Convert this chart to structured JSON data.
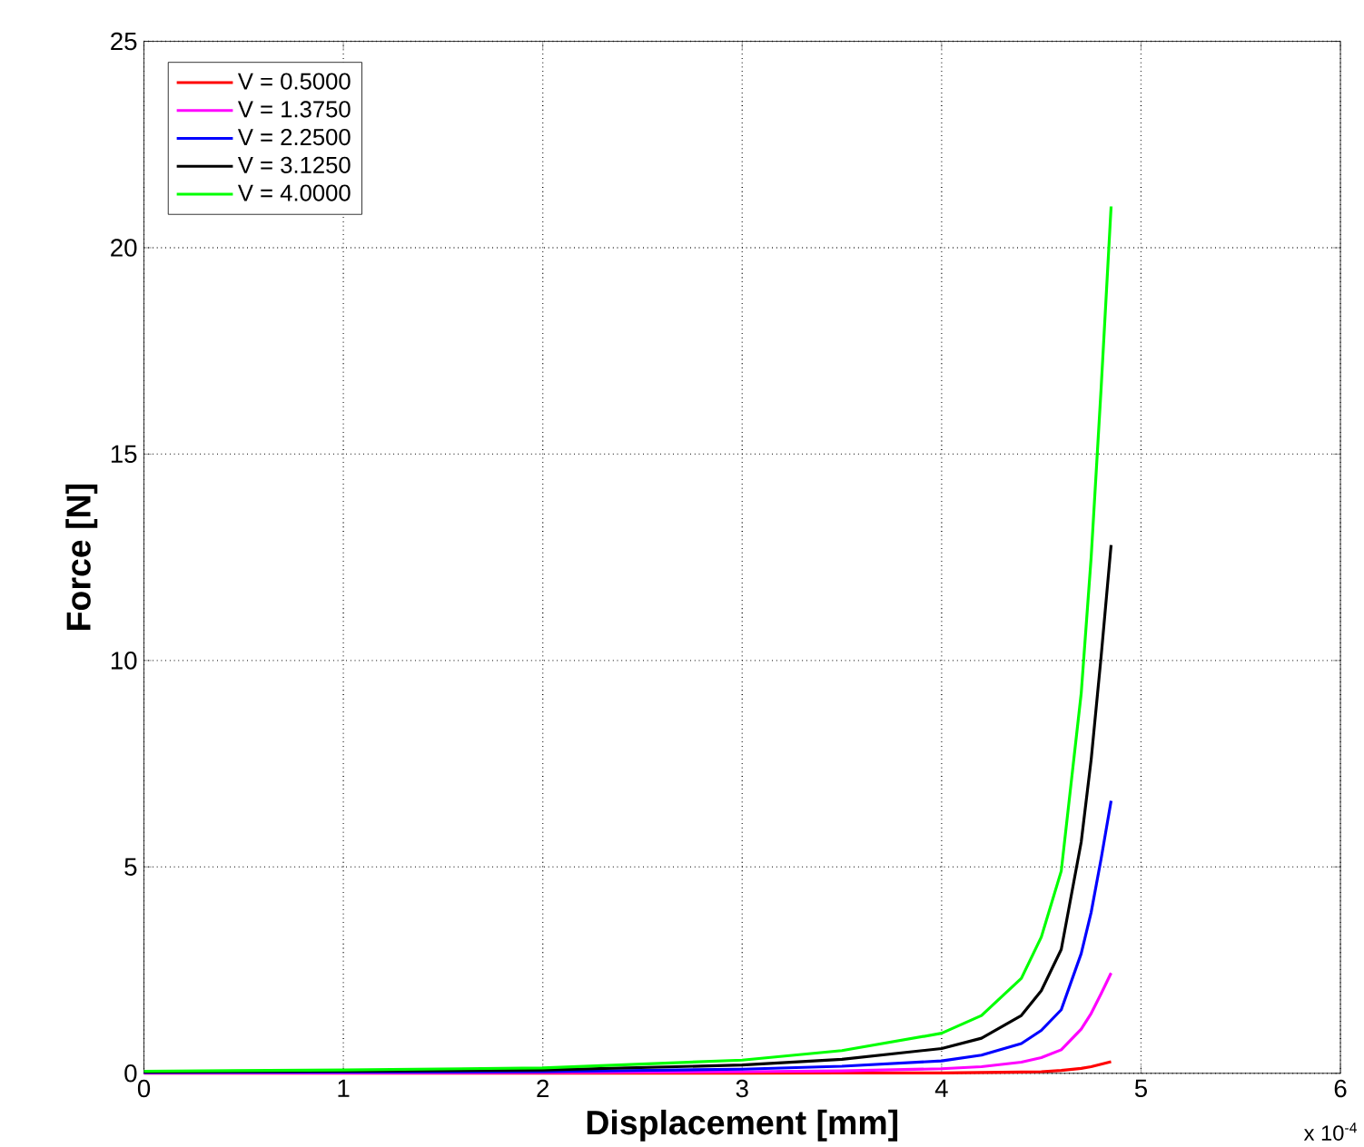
{
  "chart_data": {
    "type": "line",
    "xlabel": "Displacement [mm]",
    "ylabel": "Force [N]",
    "annotations": [
      "x 10$^{-4}$"
    ],
    "x": [
      0,
      1,
      2,
      3,
      3.5,
      4,
      4.2,
      4.4,
      4.5,
      4.6,
      4.7,
      4.75,
      4.8,
      4.85
    ],
    "series": [
      {
        "name": "V = 0.5000",
        "color": "#ff0000",
        "values": [
          0,
          0,
          0,
          0,
          0.01,
          0.01,
          0.02,
          0.03,
          0.04,
          0.07,
          0.12,
          0.16,
          0.22,
          0.28
        ]
      },
      {
        "name": "V = 1.3750",
        "color": "#ff00ff",
        "values": [
          0.01,
          0.01,
          0.02,
          0.04,
          0.06,
          0.11,
          0.16,
          0.27,
          0.38,
          0.57,
          1.07,
          1.45,
          1.93,
          2.43
        ]
      },
      {
        "name": "V = 2.2500",
        "color": "#0000ff",
        "values": [
          0.02,
          0.03,
          0.04,
          0.1,
          0.17,
          0.3,
          0.44,
          0.72,
          1.04,
          1.54,
          2.9,
          3.9,
          5.2,
          6.6
        ]
      },
      {
        "name": "V = 3.1250",
        "color": "#000000",
        "values": [
          0.03,
          0.05,
          0.08,
          0.2,
          0.34,
          0.6,
          0.85,
          1.4,
          2.0,
          3.0,
          5.6,
          7.6,
          10.1,
          12.8
        ]
      },
      {
        "name": "V = 4.0000",
        "color": "#00ff00",
        "values": [
          0.05,
          0.08,
          0.13,
          0.32,
          0.55,
          0.97,
          1.4,
          2.3,
          3.3,
          4.9,
          9.2,
          12.5,
          16.6,
          21.0
        ]
      }
    ],
    "xlim": [
      0,
      6
    ],
    "xticks": [
      0,
      1,
      2,
      3,
      4,
      5,
      6
    ],
    "ylim": [
      0,
      25
    ],
    "yticks": [
      0,
      5,
      10,
      15,
      20,
      25
    ],
    "grid": true,
    "legend": "top left",
    "line_style": "solid",
    "marker": "none"
  }
}
